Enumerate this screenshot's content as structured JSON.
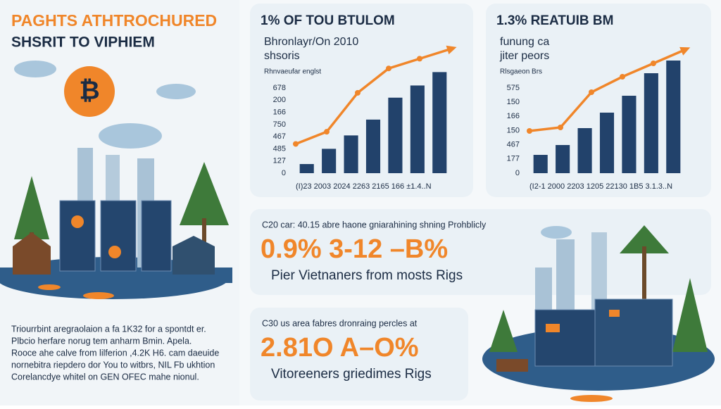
{
  "header": {
    "title": "PAGHTS ATHTROCHURED",
    "subtitle": "SHSRIT TO VIPHIEM"
  },
  "body_text": [
    "Triourrbint aregraolaion a fa 1K32 for a spontdt er.",
    "Plbcio herfare norug tem anharm Bmin. Apela.",
    "Rooce ahe calve from lilferion ,4.2K H6. cam daeuide",
    "nornebitra riepdero dor You to witbrs, NIL Fb ukhtion",
    "Corelancdye whitel on GEN OFEC mahe nionul."
  ],
  "chart_data": [
    {
      "type": "bar",
      "title": "1% OF TOU BTULOM",
      "subtitle": [
        "Bhronlayr/On 2010",
        "shsoris"
      ],
      "note": "Rhnvaeufar englst",
      "y_labels": [
        "0",
        "127",
        "485",
        "467",
        "750",
        "166",
        "200",
        "678"
      ],
      "x_label": "(I)23 2003 2024 2263 2165 166 ±1.4..N",
      "values": [
        0.75,
        2.0,
        3.1,
        4.4,
        6.2,
        7.2,
        8.3
      ],
      "color": "#22426b",
      "line": {
        "values": [
          2.4,
          3.4,
          6.6,
          8.6,
          9.4,
          10.2
        ],
        "color": "#f0862a"
      }
    },
    {
      "type": "bar",
      "title": "1.3% REATUIB BM",
      "subtitle": [
        "funung ca",
        "jiter peors"
      ],
      "note": "Rlsgaeon Brs",
      "y_labels": [
        "0",
        "177",
        "467",
        "150",
        "166",
        "150",
        "575"
      ],
      "x_label": "(I2-1 2000 2203 1205 22130 1В5 3.1.3..N",
      "values": [
        1.3,
        2.0,
        3.2,
        4.3,
        5.5,
        7.1,
        8.0
      ],
      "color": "#22426b",
      "line": {
        "values": [
          3.0,
          3.25,
          5.75,
          6.85,
          7.8,
          8.75
        ],
        "color": "#f0862a"
      }
    }
  ],
  "cards": [
    {
      "caption": "C20 car: 40.15 abre haone gniarahining shning Prohblicly",
      "stat": "0.9% 3-12 –B%",
      "text": "Pier Vietnaners from mosts Rigs"
    },
    {
      "caption": "C30 us area fabres dronraing percles at",
      "stat": "2.81O A–O%",
      "text": "Vitoreeners griedimes Rigs"
    }
  ]
}
